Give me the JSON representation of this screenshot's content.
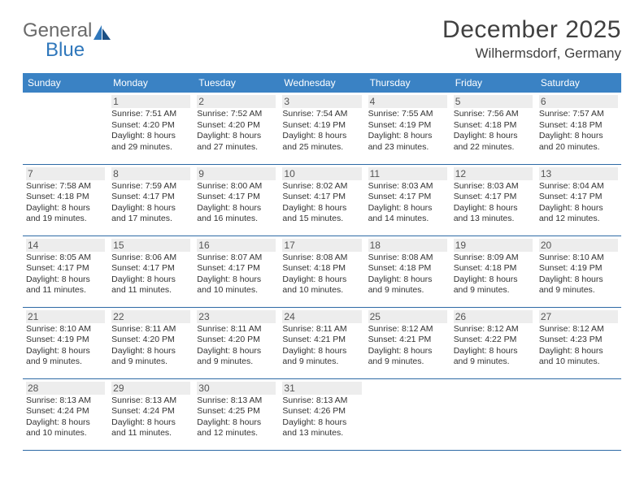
{
  "logo": {
    "text1": "General",
    "text2": "Blue"
  },
  "title": "December 2025",
  "location": "Wilhermsdorf, Germany",
  "colors": {
    "header_bg": "#3a82c4",
    "header_text": "#ffffff",
    "row_border": "#2e6aa5",
    "daynum_bg": "#ededed",
    "logo_blue": "#2f77bb",
    "logo_gray": "#6a6a6a"
  },
  "weekdays": [
    "Sunday",
    "Monday",
    "Tuesday",
    "Wednesday",
    "Thursday",
    "Friday",
    "Saturday"
  ],
  "weeks": [
    [
      {
        "n": "",
        "sr": "",
        "ss": "",
        "dl": ""
      },
      {
        "n": "1",
        "sr": "7:51 AM",
        "ss": "4:20 PM",
        "dl": "8 hours and 29 minutes."
      },
      {
        "n": "2",
        "sr": "7:52 AM",
        "ss": "4:20 PM",
        "dl": "8 hours and 27 minutes."
      },
      {
        "n": "3",
        "sr": "7:54 AM",
        "ss": "4:19 PM",
        "dl": "8 hours and 25 minutes."
      },
      {
        "n": "4",
        "sr": "7:55 AM",
        "ss": "4:19 PM",
        "dl": "8 hours and 23 minutes."
      },
      {
        "n": "5",
        "sr": "7:56 AM",
        "ss": "4:18 PM",
        "dl": "8 hours and 22 minutes."
      },
      {
        "n": "6",
        "sr": "7:57 AM",
        "ss": "4:18 PM",
        "dl": "8 hours and 20 minutes."
      }
    ],
    [
      {
        "n": "7",
        "sr": "7:58 AM",
        "ss": "4:18 PM",
        "dl": "8 hours and 19 minutes."
      },
      {
        "n": "8",
        "sr": "7:59 AM",
        "ss": "4:17 PM",
        "dl": "8 hours and 17 minutes."
      },
      {
        "n": "9",
        "sr": "8:00 AM",
        "ss": "4:17 PM",
        "dl": "8 hours and 16 minutes."
      },
      {
        "n": "10",
        "sr": "8:02 AM",
        "ss": "4:17 PM",
        "dl": "8 hours and 15 minutes."
      },
      {
        "n": "11",
        "sr": "8:03 AM",
        "ss": "4:17 PM",
        "dl": "8 hours and 14 minutes."
      },
      {
        "n": "12",
        "sr": "8:03 AM",
        "ss": "4:17 PM",
        "dl": "8 hours and 13 minutes."
      },
      {
        "n": "13",
        "sr": "8:04 AM",
        "ss": "4:17 PM",
        "dl": "8 hours and 12 minutes."
      }
    ],
    [
      {
        "n": "14",
        "sr": "8:05 AM",
        "ss": "4:17 PM",
        "dl": "8 hours and 11 minutes."
      },
      {
        "n": "15",
        "sr": "8:06 AM",
        "ss": "4:17 PM",
        "dl": "8 hours and 11 minutes."
      },
      {
        "n": "16",
        "sr": "8:07 AM",
        "ss": "4:17 PM",
        "dl": "8 hours and 10 minutes."
      },
      {
        "n": "17",
        "sr": "8:08 AM",
        "ss": "4:18 PM",
        "dl": "8 hours and 10 minutes."
      },
      {
        "n": "18",
        "sr": "8:08 AM",
        "ss": "4:18 PM",
        "dl": "8 hours and 9 minutes."
      },
      {
        "n": "19",
        "sr": "8:09 AM",
        "ss": "4:18 PM",
        "dl": "8 hours and 9 minutes."
      },
      {
        "n": "20",
        "sr": "8:10 AM",
        "ss": "4:19 PM",
        "dl": "8 hours and 9 minutes."
      }
    ],
    [
      {
        "n": "21",
        "sr": "8:10 AM",
        "ss": "4:19 PM",
        "dl": "8 hours and 9 minutes."
      },
      {
        "n": "22",
        "sr": "8:11 AM",
        "ss": "4:20 PM",
        "dl": "8 hours and 9 minutes."
      },
      {
        "n": "23",
        "sr": "8:11 AM",
        "ss": "4:20 PM",
        "dl": "8 hours and 9 minutes."
      },
      {
        "n": "24",
        "sr": "8:11 AM",
        "ss": "4:21 PM",
        "dl": "8 hours and 9 minutes."
      },
      {
        "n": "25",
        "sr": "8:12 AM",
        "ss": "4:21 PM",
        "dl": "8 hours and 9 minutes."
      },
      {
        "n": "26",
        "sr": "8:12 AM",
        "ss": "4:22 PM",
        "dl": "8 hours and 9 minutes."
      },
      {
        "n": "27",
        "sr": "8:12 AM",
        "ss": "4:23 PM",
        "dl": "8 hours and 10 minutes."
      }
    ],
    [
      {
        "n": "28",
        "sr": "8:13 AM",
        "ss": "4:24 PM",
        "dl": "8 hours and 10 minutes."
      },
      {
        "n": "29",
        "sr": "8:13 AM",
        "ss": "4:24 PM",
        "dl": "8 hours and 11 minutes."
      },
      {
        "n": "30",
        "sr": "8:13 AM",
        "ss": "4:25 PM",
        "dl": "8 hours and 12 minutes."
      },
      {
        "n": "31",
        "sr": "8:13 AM",
        "ss": "4:26 PM",
        "dl": "8 hours and 13 minutes."
      },
      {
        "n": "",
        "sr": "",
        "ss": "",
        "dl": ""
      },
      {
        "n": "",
        "sr": "",
        "ss": "",
        "dl": ""
      },
      {
        "n": "",
        "sr": "",
        "ss": "",
        "dl": ""
      }
    ]
  ]
}
